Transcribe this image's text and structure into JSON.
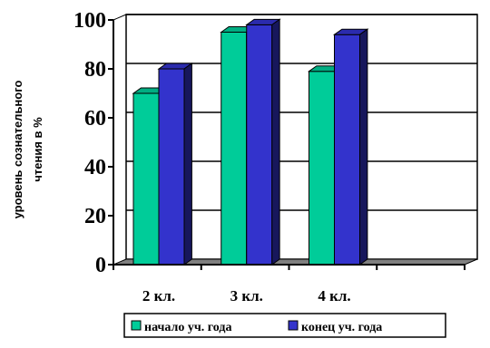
{
  "chart_data": {
    "type": "bar",
    "categories": [
      "2 кл.",
      "3 кл.",
      "4 кл.",
      ""
    ],
    "series": [
      {
        "name": "начало уч. года",
        "color": "#00cc99",
        "values": [
          70,
          95,
          79,
          null
        ]
      },
      {
        "name": "конец уч. года",
        "color": "#3333cc",
        "values": [
          80,
          98,
          94,
          null
        ]
      }
    ],
    "ylabel_lines": [
      "уровень сознательного",
      "чтения в %"
    ],
    "yticks": [
      "0",
      "20",
      "40",
      "60",
      "80",
      "100"
    ],
    "ylim": [
      0,
      100
    ],
    "grid": true,
    "legend_position": "bottom",
    "three_d": true,
    "floor_color": "#808080"
  }
}
